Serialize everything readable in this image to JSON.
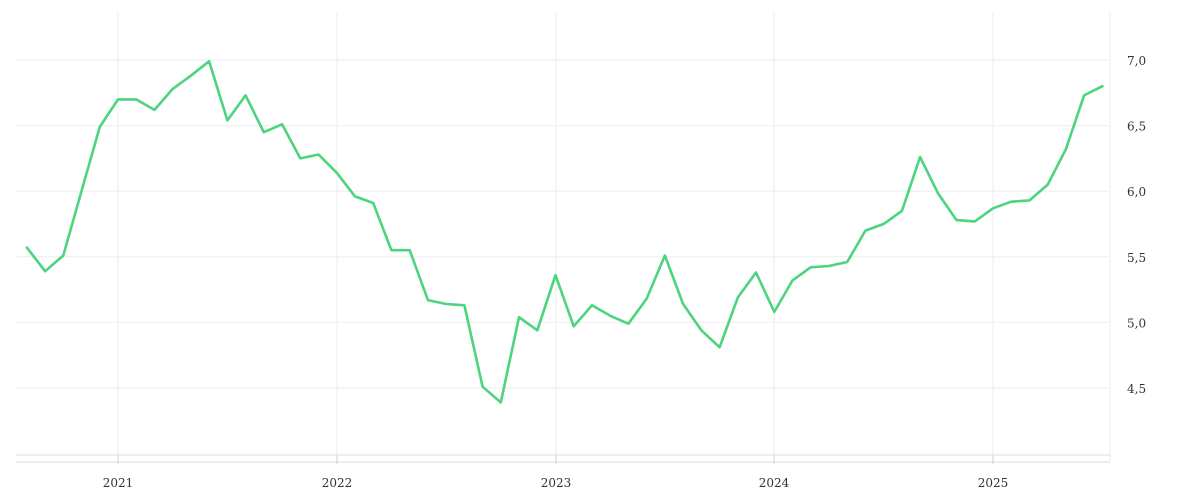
{
  "chart_data": {
    "type": "line",
    "title": "",
    "xlabel": "",
    "ylabel": "",
    "x_tick_labels": [
      "2021",
      "2022",
      "2023",
      "2024",
      "2025"
    ],
    "y_tick_labels": [
      "4,5",
      "5,0",
      "5,5",
      "6,0",
      "6,5",
      "7,0"
    ],
    "ylim": [
      4.0,
      7.3
    ],
    "xlim": [
      "2020-07",
      "2025-07"
    ],
    "grid": true,
    "legend": "none",
    "y_axis_position": "right",
    "line_color": "#4cd47f",
    "grid_color": "#eeeeee",
    "series": [
      {
        "x": [
          "2020-08",
          "2020-09",
          "2020-10",
          "2020-11",
          "2020-12",
          "2021-01",
          "2021-02",
          "2021-03",
          "2021-04",
          "2021-05",
          "2021-06",
          "2021-07",
          "2021-08",
          "2021-09",
          "2021-10",
          "2021-11",
          "2021-12",
          "2022-01",
          "2022-02",
          "2022-03",
          "2022-04",
          "2022-05",
          "2022-06",
          "2022-07",
          "2022-08",
          "2022-09",
          "2022-10",
          "2022-11",
          "2022-12",
          "2023-01",
          "2023-02",
          "2023-03",
          "2023-04",
          "2023-05",
          "2023-06",
          "2023-07",
          "2023-08",
          "2023-09",
          "2023-10",
          "2023-11",
          "2023-12",
          "2024-01",
          "2024-02",
          "2024-03",
          "2024-04",
          "2024-05",
          "2024-06",
          "2024-07",
          "2024-08",
          "2024-09",
          "2024-10",
          "2024-11",
          "2024-12",
          "2025-01",
          "2025-02",
          "2025-03",
          "2025-04",
          "2025-05",
          "2025-06",
          "2025-07"
        ],
        "values": [
          5.57,
          5.39,
          5.51,
          6.0,
          6.49,
          6.7,
          6.7,
          6.62,
          6.78,
          6.88,
          6.99,
          6.54,
          6.73,
          6.45,
          6.51,
          6.25,
          6.28,
          6.14,
          5.96,
          5.91,
          5.55,
          5.55,
          5.17,
          5.14,
          5.13,
          4.51,
          4.39,
          5.04,
          4.94,
          5.36,
          4.97,
          5.13,
          5.05,
          4.99,
          5.18,
          5.51,
          5.14,
          4.94,
          4.81,
          5.19,
          5.38,
          5.08,
          5.32,
          5.42,
          5.43,
          5.46,
          5.7,
          5.75,
          5.85,
          6.26,
          5.98,
          5.78,
          5.77,
          5.87,
          5.92,
          5.93,
          6.05,
          6.32,
          6.73,
          6.8
        ]
      }
    ]
  }
}
